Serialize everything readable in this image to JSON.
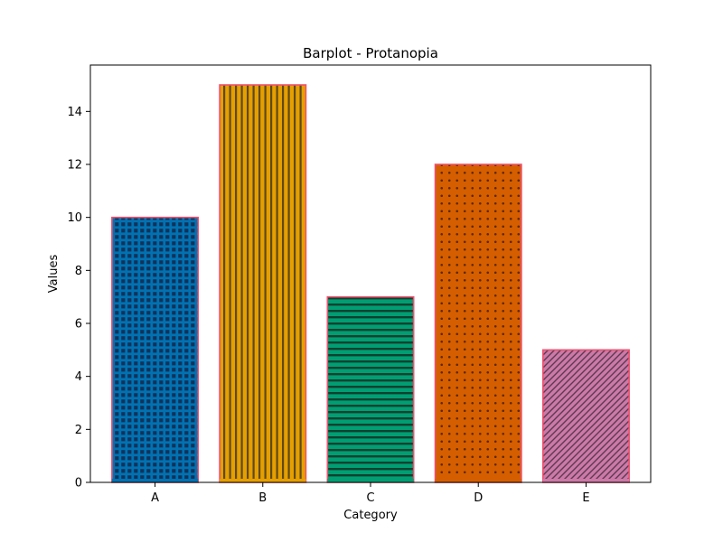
{
  "chart_data": {
    "type": "bar",
    "title": "Barplot - Protanopia",
    "xlabel": "Category",
    "ylabel": "Values",
    "categories": [
      "A",
      "B",
      "C",
      "D",
      "E"
    ],
    "values": [
      10,
      15,
      7,
      12,
      5
    ],
    "ylim": [
      0,
      15.75
    ],
    "yticks": [
      0,
      2,
      4,
      6,
      8,
      10,
      12,
      14
    ],
    "grid": false,
    "bar_colors": [
      "#0072B2",
      "#E69F00",
      "#009E73",
      "#D55E00",
      "#CC79A7"
    ],
    "bar_edgecolor": "#F0506E",
    "hatches": [
      "squares",
      "vertical",
      "horizontal",
      "dots",
      "diagonal"
    ]
  }
}
